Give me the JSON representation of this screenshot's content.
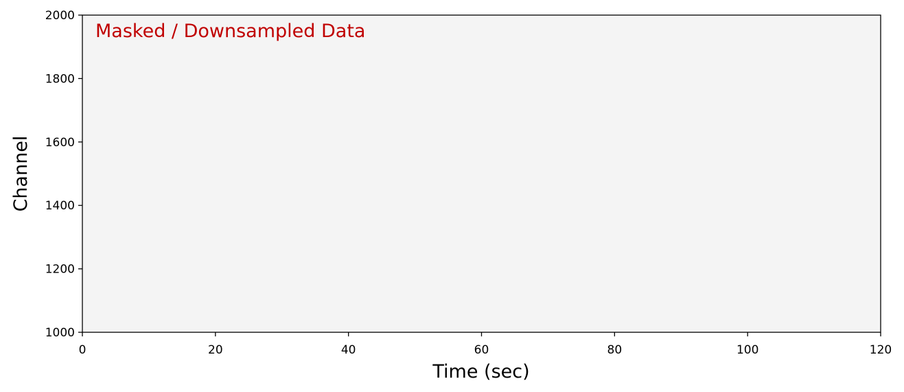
{
  "chart_data": {
    "type": "image",
    "annotation": "Masked / Downsampled Data",
    "annotation_color": "#c00000",
    "background_color": "#f4f4f4",
    "xlabel": "Time (sec)",
    "ylabel": "Channel",
    "xlim": [
      0,
      120
    ],
    "ylim": [
      1000,
      2000
    ],
    "xticks": [
      0,
      20,
      40,
      60,
      80,
      100,
      120
    ],
    "yticks": [
      1000,
      1200,
      1400,
      1600,
      1800,
      2000
    ]
  }
}
